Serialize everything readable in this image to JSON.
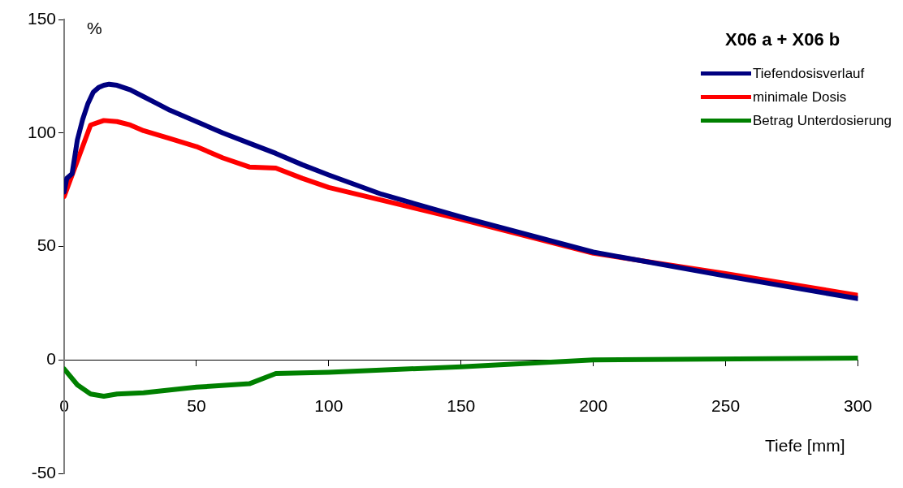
{
  "chart_data": {
    "type": "line",
    "legend_title": "X06 a + X06 b",
    "xlabel": "Tiefe [mm]",
    "ylabel": "%",
    "xlim": [
      0,
      300
    ],
    "xticks": [
      0,
      50,
      100,
      150,
      200,
      250,
      300
    ],
    "ylim": [
      -50,
      150
    ],
    "yticks": [
      -50,
      0,
      50,
      100,
      150
    ],
    "grid": false,
    "legend": "top right",
    "marker": "none",
    "line_style": "solid",
    "series": [
      {
        "name": "Tiefendosisverlauf",
        "color": "#000080",
        "x": [
          0,
          1,
          3,
          5,
          7,
          9,
          11,
          13,
          15,
          17,
          20,
          25,
          30,
          35,
          40,
          50,
          60,
          70,
          80,
          90,
          100,
          120,
          150,
          200,
          250,
          300
        ],
        "values": [
          74,
          80,
          82,
          97,
          106,
          113,
          118,
          120,
          121,
          121.5,
          121,
          119,
          116,
          113,
          110,
          105,
          100,
          95.5,
          91,
          86,
          81.5,
          73,
          63,
          47.5,
          37,
          27
        ]
      },
      {
        "name": "minimale Dosis",
        "color": "#ff0000",
        "x": [
          0,
          10,
          15,
          20,
          25,
          30,
          40,
          50,
          60,
          70,
          80,
          90,
          100,
          150,
          200,
          250,
          300
        ],
        "values": [
          72,
          103.5,
          105.5,
          105,
          103.5,
          101,
          97.5,
          94,
          89,
          85,
          84.5,
          80,
          76,
          62,
          47,
          38,
          28.5
        ]
      },
      {
        "name": "Betrag Unterdosierung",
        "color": "#008000",
        "x": [
          0,
          5,
          10,
          15,
          20,
          30,
          50,
          70,
          80,
          100,
          150,
          200,
          300
        ],
        "values": [
          -4,
          -11,
          -15,
          -16,
          -15,
          -14.5,
          -12,
          -10.5,
          -6,
          -5.5,
          -3,
          0,
          0.8
        ]
      }
    ]
  }
}
